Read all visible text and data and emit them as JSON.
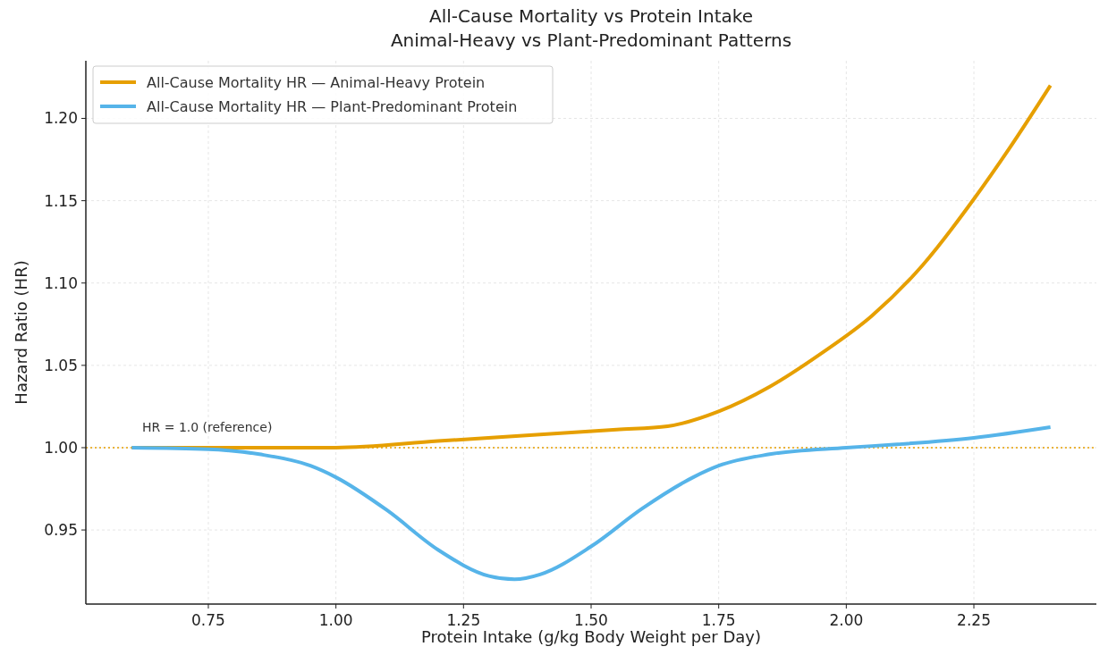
{
  "chart_data": {
    "type": "line",
    "title": "All-Cause Mortality vs Protein Intake",
    "subtitle": "Animal-Heavy vs Plant-Predominant Patterns",
    "xlabel": "Protein Intake (g/kg Body Weight per Day)",
    "ylabel": "Hazard Ratio (HR)",
    "xlim": [
      0.51,
      2.49
    ],
    "xticks": [
      {
        "value": 0.75,
        "label": "0.75"
      },
      {
        "value": 1,
        "label": "1.00"
      },
      {
        "value": 1.25,
        "label": "1.25"
      },
      {
        "value": 1.5,
        "label": "1.50"
      },
      {
        "value": 1.75,
        "label": "1.75"
      },
      {
        "value": 2,
        "label": "2.00"
      },
      {
        "value": 2.25,
        "label": "2.25"
      }
    ],
    "ylim": [
      0.905,
      1.235
    ],
    "yticks": [
      {
        "value": 0.95,
        "label": "0.95"
      },
      {
        "value": 1,
        "label": "1.00"
      },
      {
        "value": 1.05,
        "label": "1.05"
      },
      {
        "value": 1.1,
        "label": "1.10"
      },
      {
        "value": 1.15,
        "label": "1.15"
      },
      {
        "value": 1.2,
        "label": "1.20"
      }
    ],
    "grid": true,
    "legend": "top left",
    "line_style": "solid",
    "marker": "none",
    "ref_lines": [
      {
        "axis": "y",
        "value": 1,
        "label": "HR = 1.0 (reference)",
        "color": "#e69f00",
        "line_style": "dotted"
      }
    ],
    "series": [
      {
        "name": "All-Cause Mortality HR — Animal-Heavy Protein",
        "color": "#e69f00",
        "x": [
          0.6,
          0.8,
          1.0,
          1.2,
          1.4,
          1.55,
          1.65,
          1.75,
          1.85,
          1.95,
          2.05,
          2.15,
          2.25,
          2.32,
          2.4
        ],
        "values": [
          1.0,
          1.0,
          1.0,
          1.004,
          1.008,
          1.011,
          1.013,
          1.022,
          1.037,
          1.057,
          1.08,
          1.111,
          1.151,
          1.182,
          1.22
        ]
      },
      {
        "name": "All-Cause Mortality HR — Plant-Predominant Protein",
        "color": "#56b4e9",
        "x": [
          0.6,
          0.75,
          0.85,
          0.95,
          1.0,
          1.1,
          1.2,
          1.3,
          1.35,
          1.4,
          1.5,
          1.6,
          1.7,
          1.75,
          1.85,
          2.0,
          2.1,
          2.25,
          2.4
        ],
        "values": [
          1.0,
          0.999,
          0.996,
          0.989,
          0.982,
          0.962,
          0.938,
          0.922,
          0.92,
          0.923,
          0.94,
          0.963,
          0.982,
          0.989,
          0.996,
          1.0,
          1.002,
          1.006,
          1.0125
        ]
      }
    ]
  }
}
